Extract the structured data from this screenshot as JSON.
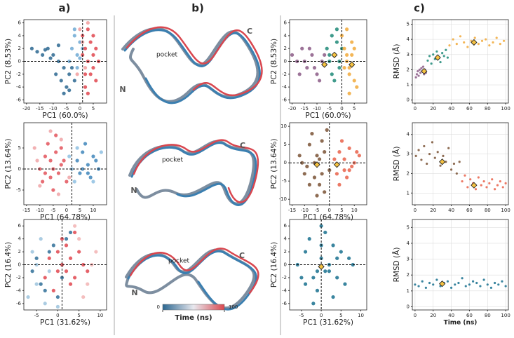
{
  "panel_labels": [
    "a)",
    "b)",
    "c)"
  ],
  "structures": [
    {
      "labels": [
        "pocket",
        "N",
        "C"
      ]
    },
    {
      "labels": [
        "pocket",
        "C",
        "N"
      ]
    },
    {
      "labels": [
        "pocket",
        "C",
        "N"
      ]
    }
  ],
  "colorbar": {
    "label": "Time (ns)",
    "ticks": [
      0,
      100
    ]
  },
  "chart_data": [
    {
      "type": "scatter",
      "xlabel": "PC1 (60.0%)",
      "ylabel": "PC2 (8.53%)",
      "xlim": [
        -21,
        10
      ],
      "ylim": [
        -6.5,
        6.5
      ],
      "xticks": [
        -20,
        -15,
        -10,
        -5,
        0,
        5
      ],
      "yticks": [
        -6,
        -4,
        -2,
        0,
        2,
        4,
        6
      ],
      "crosshair": {
        "x": 1,
        "y": 0
      },
      "grid": false,
      "series": [
        {
          "color": "#2b6791",
          "x": [
            -18,
            -16,
            -14,
            -12,
            -10,
            -8,
            -6,
            -4,
            -2,
            -9,
            -7,
            -5,
            -3,
            -11,
            -13,
            -6,
            -4,
            -8
          ],
          "values": [
            2,
            1.5,
            1,
            2,
            1,
            0,
            -1,
            -2,
            -3,
            -2,
            -3,
            -4,
            -1,
            0.5,
            1.8,
            -5,
            -4.5,
            2.5
          ]
        },
        {
          "color": "#6fa9d4",
          "x": [
            -3,
            -2,
            -1,
            0,
            -4,
            -1,
            -2,
            0,
            1
          ],
          "values": [
            2,
            4,
            1,
            3,
            0,
            -1,
            5,
            0.5,
            2
          ]
        },
        {
          "color": "#f29c9c",
          "x": [
            0,
            1,
            2,
            -1,
            3
          ],
          "values": [
            5,
            3,
            -1,
            -2,
            6
          ]
        },
        {
          "color": "#e0474f",
          "x": [
            1,
            2,
            3,
            4,
            5,
            6,
            2,
            3,
            4,
            5,
            6,
            3,
            1,
            2,
            5,
            7
          ],
          "values": [
            4,
            2,
            0,
            -2,
            1,
            -3,
            -4,
            5,
            3,
            -1,
            2,
            -5,
            1,
            -2,
            4,
            0
          ]
        }
      ]
    },
    {
      "type": "scatter",
      "xlabel": "PC1 (64.78%)",
      "ylabel": "PC2 (13.64%)",
      "xlim": [
        -16,
        15
      ],
      "ylim": [
        -8.5,
        11
      ],
      "xticks": [
        -15,
        -10,
        -5,
        0,
        5,
        10
      ],
      "yticks": [
        -5,
        0,
        5
      ],
      "crosshair": {
        "x": 2,
        "y": 0
      },
      "grid": false,
      "series": [
        {
          "color": "#f0a3a6",
          "x": [
            -12,
            -10,
            -6,
            -3,
            -11,
            -2,
            1
          ],
          "values": [
            5,
            -4,
            9,
            -6,
            2,
            7,
            -2
          ]
        },
        {
          "color": "#e3535c",
          "x": [
            -10,
            -8,
            -6,
            -4,
            -2,
            0,
            -7,
            -5,
            -3,
            -9,
            -6,
            -4,
            -2,
            -8,
            -1,
            -5
          ],
          "values": [
            0,
            3,
            -2,
            4,
            1,
            -3,
            6,
            -5,
            -1,
            -3,
            2,
            8,
            5,
            -1,
            2,
            0
          ]
        },
        {
          "color": "#8ec0e2",
          "x": [
            2,
            3,
            4,
            13,
            10,
            1
          ],
          "values": [
            0,
            -3,
            5,
            4,
            -3,
            3
          ]
        },
        {
          "color": "#3f86bb",
          "x": [
            4,
            6,
            8,
            10,
            12,
            5,
            7,
            9,
            11,
            6,
            8
          ],
          "values": [
            2,
            4,
            1,
            3,
            0,
            -1,
            6,
            -2,
            2,
            0,
            -1
          ]
        }
      ]
    },
    {
      "type": "scatter",
      "xlabel": "PC1 (31.62%)",
      "ylabel": "PC2 (16.4%)",
      "xlim": [
        -8,
        11.5
      ],
      "ylim": [
        -7,
        7
      ],
      "xticks": [
        -5,
        0,
        5,
        10
      ],
      "yticks": [
        -6,
        -4,
        -2,
        0,
        2,
        4,
        6
      ],
      "crosshair": {
        "x": 1,
        "y": 0
      },
      "grid": false,
      "series": [
        {
          "color": "#9cc3dd",
          "x": [
            -7,
            -5,
            -3,
            -6,
            -4,
            -2,
            0,
            -5
          ],
          "values": [
            -5,
            -3,
            -6,
            2,
            4,
            -1,
            -6.5,
            0
          ]
        },
        {
          "color": "#2f6f98",
          "x": [
            -4,
            -2,
            0,
            2,
            -6,
            -3,
            -1,
            1,
            3,
            -5
          ],
          "values": [
            -3,
            2,
            -5,
            4,
            -1,
            -4,
            3,
            -2,
            5,
            1
          ]
        },
        {
          "color": "#f2b3b3",
          "x": [
            5,
            7,
            9,
            6,
            8,
            4
          ],
          "values": [
            4,
            -3,
            2,
            -5,
            0,
            6
          ]
        },
        {
          "color": "#e0474f",
          "x": [
            -2,
            0,
            2,
            4,
            6,
            1,
            3,
            5,
            -1,
            0,
            2,
            3,
            4,
            -3,
            7,
            1
          ],
          "values": [
            1,
            -1,
            3,
            -2,
            0,
            4,
            -3,
            2,
            -4,
            2,
            -1,
            1,
            5,
            -2,
            -1,
            0
          ]
        }
      ]
    },
    {
      "type": "scatter",
      "xlabel": "PC1 (60.0%)",
      "ylabel": "PC2 (8.53%)",
      "xlim": [
        -21,
        10
      ],
      "ylim": [
        -6.5,
        6.5
      ],
      "xticks": [
        -20,
        -15,
        -10,
        -5,
        0,
        5
      ],
      "yticks": [
        -6,
        -4,
        -2,
        0,
        2,
        4,
        6
      ],
      "crosshair": {
        "x": 0,
        "y": 0
      },
      "grid": false,
      "series": [
        {
          "color": "#8b5b86",
          "x": [
            -20,
            -18,
            -16,
            -14,
            -12,
            -10,
            -8,
            -17,
            -13,
            -11,
            -9,
            -15,
            -7
          ],
          "values": [
            1,
            0,
            2,
            -1,
            1,
            -2,
            0,
            -2,
            2,
            -1,
            -3,
            0,
            1
          ]
        },
        {
          "color": "#1f8a78",
          "x": [
            -6,
            -5,
            -4,
            -3,
            -2,
            -1,
            0,
            -4,
            -2,
            -3,
            -5,
            -1
          ],
          "values": [
            2,
            0,
            4,
            1,
            3,
            -1,
            2,
            -2,
            5,
            -3,
            1,
            0
          ]
        },
        {
          "color": "#f1a93a",
          "x": [
            0,
            1,
            2,
            3,
            4,
            5,
            6,
            2,
            3,
            4,
            1,
            5,
            3,
            2
          ],
          "values": [
            4,
            2,
            0,
            -2,
            1,
            -3,
            -4,
            5,
            -5,
            3,
            -1,
            2,
            -1,
            1
          ]
        }
      ],
      "centroids": {
        "color": "#f5c242",
        "x": [
          -7,
          -3,
          4
        ],
        "y": [
          -0.5,
          1,
          -0.5
        ]
      }
    },
    {
      "type": "scatter",
      "xlabel": "PC1 (64.78%)",
      "ylabel": "PC2 (13.64%)",
      "xlim": [
        -16,
        15
      ],
      "ylim": [
        -11.5,
        11
      ],
      "xticks": [
        -15,
        -10,
        -5,
        0,
        5,
        10
      ],
      "yticks": [
        -10,
        -5,
        0,
        5,
        10
      ],
      "crosshair": {
        "x": 0,
        "y": 0
      },
      "grid": false,
      "series": [
        {
          "color": "#7a5235",
          "x": [
            -12,
            -10,
            -8,
            -6,
            -4,
            -2,
            0,
            -7,
            -5,
            -3,
            -9,
            -6,
            -4,
            -2,
            -8,
            -1,
            -5,
            -11,
            -3
          ],
          "values": [
            2,
            -3,
            5,
            0,
            -6,
            3,
            -2,
            8,
            -9,
            6,
            -1,
            -4,
            1,
            -8,
            -6,
            9,
            2,
            0,
            -3
          ]
        },
        {
          "color": "#e9624a",
          "x": [
            2,
            4,
            6,
            8,
            10,
            12,
            3,
            5,
            7,
            9,
            11,
            4,
            6,
            8
          ],
          "values": [
            1,
            3,
            -2,
            4,
            0,
            2,
            -3,
            6,
            -4,
            -1,
            3,
            -6,
            1,
            -2
          ]
        }
      ],
      "centroids": {
        "color": "#f5c242",
        "x": [
          -5,
          3
        ],
        "y": [
          -0.5,
          -0.5
        ]
      }
    },
    {
      "type": "scatter",
      "xlabel": "PC1 (31.62%)",
      "ylabel": "PC2 (16.4%)",
      "xlim": [
        -8,
        11.5
      ],
      "ylim": [
        -7,
        7
      ],
      "xticks": [
        -5,
        0,
        5,
        10
      ],
      "yticks": [
        -6,
        -4,
        -2,
        0,
        2,
        4,
        6
      ],
      "crosshair": {
        "x": 0,
        "y": 0
      },
      "grid": false,
      "series": [
        {
          "color": "#17708e",
          "x": [
            -6,
            -4,
            -2,
            0,
            2,
            4,
            6,
            8,
            -5,
            -3,
            -1,
            1,
            3,
            5,
            7,
            -2,
            0,
            2,
            -4,
            4,
            0,
            -1,
            1,
            3
          ],
          "values": [
            0,
            2,
            -2,
            3,
            -1,
            1,
            -3,
            0,
            -2,
            4,
            -4,
            5,
            -5,
            2,
            1,
            -6,
            6,
            0,
            -3,
            -2,
            1,
            -1,
            -1,
            3
          ]
        }
      ],
      "centroids": {
        "color": "#f5c242",
        "x": [
          0
        ],
        "y": [
          -0.3
        ]
      }
    },
    {
      "type": "scatter",
      "ylabel": "RMSD (Å)",
      "xlim": [
        -3,
        103
      ],
      "ylim": [
        -0.2,
        5.3
      ],
      "xticks": [
        0,
        20,
        40,
        60,
        80,
        100
      ],
      "yticks": [
        0,
        1,
        2,
        3,
        4,
        5
      ],
      "grid": true,
      "series": [
        {
          "color": "#8b5b86",
          "x": [
            1,
            2,
            3,
            4,
            5,
            6,
            7,
            8,
            9,
            10,
            11,
            12
          ],
          "values": [
            1.5,
            1.7,
            1.9,
            1.6,
            2.0,
            1.8,
            2.1,
            1.9,
            2.2,
            1.7,
            2.0,
            1.8
          ]
        },
        {
          "color": "#1f8a78",
          "x": [
            14,
            16,
            18,
            20,
            22,
            24,
            26,
            28,
            30,
            32,
            34,
            36
          ],
          "values": [
            2.6,
            2.9,
            2.4,
            3.0,
            2.7,
            3.2,
            2.8,
            2.5,
            3.1,
            2.9,
            3.3,
            2.8
          ]
        },
        {
          "color": "#f1a93a",
          "x": [
            38,
            42,
            46,
            50,
            54,
            58,
            62,
            66,
            70,
            74,
            78,
            82,
            86,
            90,
            94,
            98
          ],
          "values": [
            3.6,
            4.0,
            3.7,
            4.2,
            3.8,
            3.5,
            3.9,
            4.1,
            3.7,
            3.9,
            4.0,
            3.6,
            3.8,
            4.1,
            3.7,
            3.9
          ]
        }
      ],
      "centroids": {
        "color": "#f5c242",
        "x": [
          10,
          25,
          65
        ],
        "y": [
          1.9,
          2.8,
          3.8
        ]
      }
    },
    {
      "type": "scatter",
      "ylabel": "RMSD (Å)",
      "xlim": [
        -3,
        103
      ],
      "ylim": [
        0.4,
        4.6
      ],
      "xticks": [
        0,
        20,
        40,
        60,
        80,
        100
      ],
      "yticks": [
        1,
        2,
        3,
        4
      ],
      "grid": true,
      "series": [
        {
          "color": "#7a5235",
          "x": [
            1,
            4,
            7,
            10,
            13,
            16,
            19,
            22,
            25,
            28,
            31,
            34,
            37,
            40,
            43,
            46,
            49
          ],
          "values": [
            2.9,
            3.2,
            2.7,
            3.4,
            2.5,
            3.0,
            3.6,
            2.8,
            3.1,
            2.4,
            2.9,
            2.6,
            3.3,
            2.2,
            2.5,
            2.0,
            2.6
          ]
        },
        {
          "color": "#e9624a",
          "x": [
            52,
            55,
            58,
            61,
            64,
            67,
            70,
            73,
            76,
            79,
            82,
            85,
            88,
            91,
            94,
            97,
            100
          ],
          "values": [
            1.6,
            1.9,
            1.3,
            1.7,
            1.5,
            1.2,
            1.8,
            1.4,
            1.6,
            1.3,
            1.5,
            1.7,
            1.2,
            1.4,
            1.6,
            1.3,
            1.5
          ]
        }
      ],
      "centroids": {
        "color": "#f5c242",
        "x": [
          30,
          65
        ],
        "y": [
          2.6,
          1.4
        ]
      }
    },
    {
      "type": "scatter",
      "xlabel": "Time (ns)",
      "ylabel": "RMSD (Å)",
      "xlim": [
        -3,
        103
      ],
      "ylim": [
        -0.2,
        5.5
      ],
      "xticks": [
        0,
        20,
        40,
        60,
        80,
        100
      ],
      "yticks": [
        0,
        1,
        2,
        3,
        4,
        5
      ],
      "grid": true,
      "series": [
        {
          "color": "#17708e",
          "x": [
            0,
            4,
            8,
            12,
            16,
            20,
            24,
            28,
            32,
            36,
            40,
            44,
            48,
            52,
            56,
            60,
            64,
            68,
            72,
            76,
            80,
            84,
            88,
            92,
            96,
            100
          ],
          "values": [
            1.4,
            1.3,
            1.6,
            1.2,
            1.5,
            1.4,
            1.7,
            1.3,
            1.5,
            1.6,
            1.2,
            1.4,
            1.5,
            1.8,
            1.3,
            1.4,
            1.6,
            1.5,
            1.3,
            1.7,
            1.4,
            1.2,
            1.5,
            1.4,
            1.6,
            1.3
          ]
        }
      ],
      "centroids": {
        "color": "#f5c242",
        "x": [
          30
        ],
        "y": [
          1.45
        ]
      }
    }
  ]
}
